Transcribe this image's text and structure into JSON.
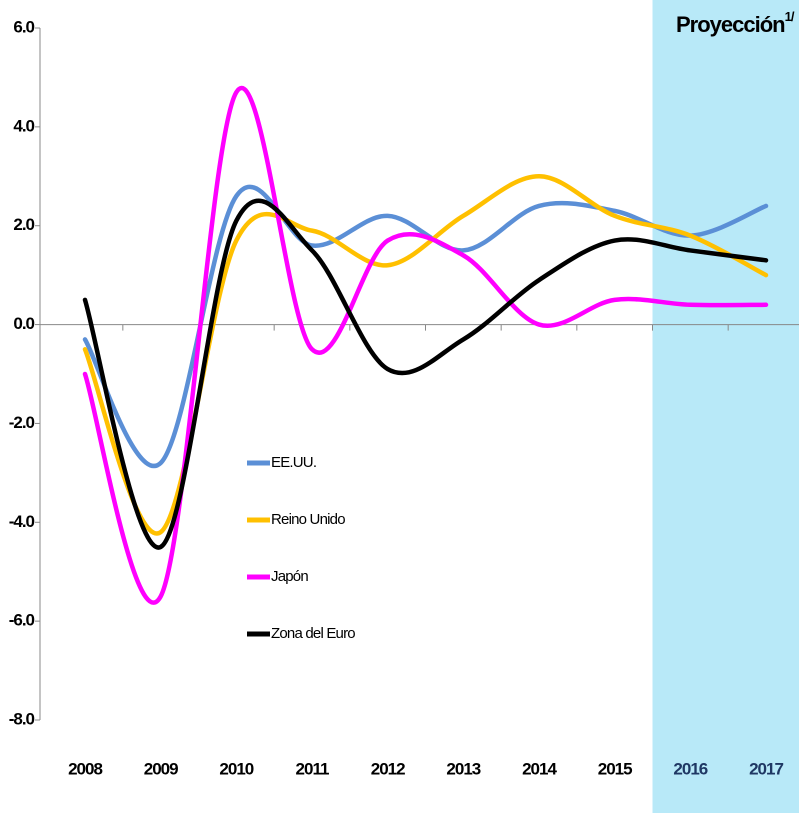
{
  "chart_data": {
    "type": "line",
    "annotation": "Proyección",
    "annotation_sup": "1/",
    "categories": [
      "2008",
      "2009",
      "2010",
      "2011",
      "2012",
      "2013",
      "2014",
      "2015",
      "2016",
      "2017"
    ],
    "projection_start": "2016",
    "series": [
      {
        "name": "EE.UU.",
        "color": "#5b8fd6",
        "values": [
          -0.3,
          -2.8,
          2.6,
          1.6,
          2.2,
          1.5,
          2.4,
          2.3,
          1.8,
          2.4
        ]
      },
      {
        "name": "Reino Unido",
        "color": "#ffc000",
        "values": [
          -0.5,
          -4.2,
          1.7,
          1.9,
          1.2,
          2.2,
          3.0,
          2.2,
          1.8,
          1.0
        ]
      },
      {
        "name": "Japón",
        "color": "#ff00ff",
        "values": [
          -1.0,
          -5.5,
          4.7,
          -0.5,
          1.7,
          1.4,
          0.0,
          0.5,
          0.4,
          0.4
        ]
      },
      {
        "name": "Zona del Euro",
        "color": "#000000",
        "values": [
          0.5,
          -4.5,
          2.1,
          1.5,
          -0.9,
          -0.3,
          0.9,
          1.7,
          1.5,
          1.3
        ]
      }
    ],
    "ylim": [
      -8,
      6
    ],
    "yticks": [
      {
        "value": -8,
        "label": "-8.0"
      },
      {
        "value": -6,
        "label": "-6.0"
      },
      {
        "value": -4,
        "label": "-4.0"
      },
      {
        "value": -2,
        "label": "-2.0"
      },
      {
        "value": 0,
        "label": "0.0"
      },
      {
        "value": 2,
        "label": "2.0"
      },
      {
        "value": 4,
        "label": "4.0"
      },
      {
        "value": 6,
        "label": "6.0"
      }
    ],
    "projection_color": "#b8e9f8"
  }
}
